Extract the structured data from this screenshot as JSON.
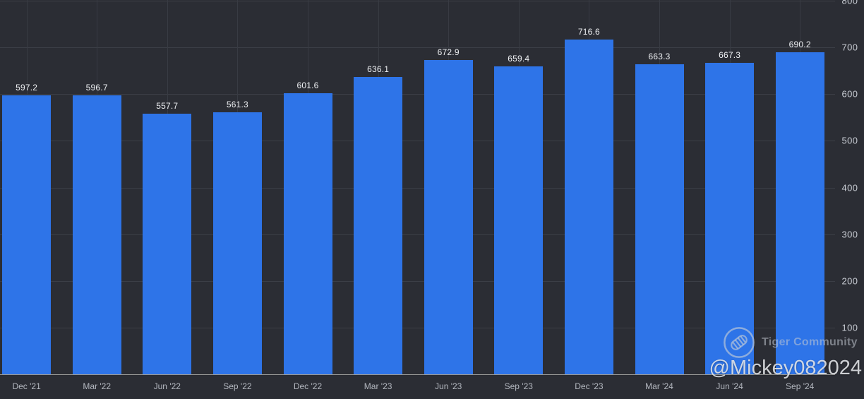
{
  "chart_data": {
    "type": "bar",
    "title": "",
    "categories": [
      "Dec '21",
      "Mar '22",
      "Jun '22",
      "Sep '22",
      "Dec '22",
      "Mar '23",
      "Jun '23",
      "Sep '23",
      "Dec '23",
      "Mar '24",
      "Jun '24",
      "Sep '24"
    ],
    "values": [
      597.2,
      596.7,
      557.7,
      561.3,
      601.6,
      636.1,
      672.9,
      659.4,
      716.6,
      663.3,
      667.3,
      690.2
    ],
    "value_label_decimals": 1,
    "xlabel": "",
    "ylabel": "",
    "ylim": [
      0,
      800
    ],
    "yticks": [
      100,
      200,
      300,
      400,
      500,
      600,
      700,
      800
    ],
    "y_axis_position": "right",
    "grid": true,
    "legend_position": "none",
    "bar_color": "#2E74E8"
  },
  "watermark": {
    "logo_icon": "tiger-community-logo-icon",
    "community_label": "Tiger Community",
    "handle": "@Mickey082024"
  },
  "colors": {
    "background": "#2B2D34",
    "bar": "#2E74E8",
    "gridline": "#3C3F47",
    "axis_line": "#9A9A98",
    "value_label": "#EEF0F3",
    "x_tick_label": "#B3B7BF",
    "y_tick_label": "#C9CDD4",
    "watermark_text": "#A8ADB5",
    "watermark_handle": "#E5E7EB"
  }
}
